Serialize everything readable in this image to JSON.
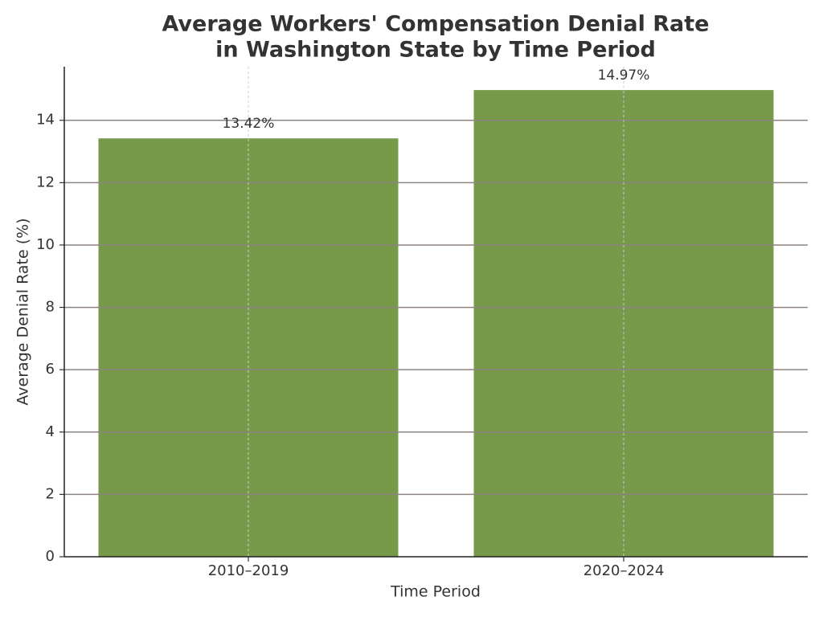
{
  "chart_data": {
    "type": "bar",
    "title": [
      "Average Workers' Compensation Denial Rate",
      "in Washington State by Time Period"
    ],
    "x_label": "Time Period",
    "y_label": "Average Denial Rate (%)",
    "categories": [
      "2010–2019",
      "2020–2024"
    ],
    "values": [
      13.42,
      14.97
    ],
    "value_labels": [
      "13.42%",
      "14.97%"
    ],
    "color": "#77994a",
    "ylim": [
      0,
      15.72
    ],
    "yticks": [
      0,
      2,
      4,
      6,
      8,
      10,
      12,
      14
    ],
    "grid": true
  }
}
